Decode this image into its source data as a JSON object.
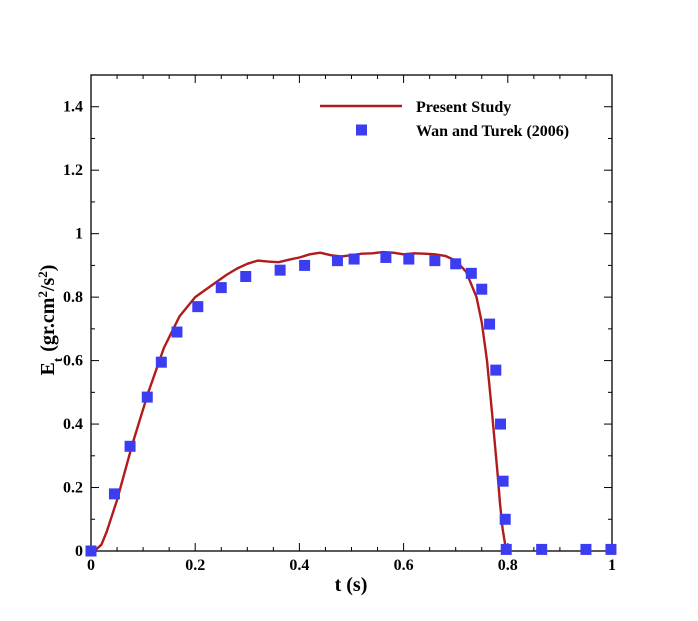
{
  "chart_data": {
    "type": "line",
    "xlabel": "t (s)",
    "ylabel": {
      "main": "E",
      "sub": "t",
      "open": "(gr.cm",
      "sup1": "2",
      "mid": "/s",
      "sup2": "2",
      "close": ")"
    },
    "xlim": [
      0,
      1
    ],
    "ylim": [
      0,
      1.5
    ],
    "xticks": [
      0,
      0.2,
      0.4,
      0.6,
      0.8,
      1
    ],
    "xtick_labels": [
      "0",
      "0.2",
      "0.4",
      "0.6",
      "0.8",
      "1"
    ],
    "yticks": [
      0,
      0.2,
      0.4,
      0.6,
      0.8,
      1,
      1.2,
      1.4
    ],
    "ytick_labels": [
      "0",
      "0.2",
      "0.4",
      "0.6",
      "0.8",
      "1",
      "1.2",
      "1.4"
    ],
    "grid": false,
    "legend_position": "top-right",
    "series": [
      {
        "name": "Present Study",
        "kind": "line",
        "color": "#b01c1c",
        "x": [
          0,
          0.01,
          0.02,
          0.03,
          0.05,
          0.08,
          0.11,
          0.14,
          0.17,
          0.2,
          0.23,
          0.26,
          0.28,
          0.3,
          0.32,
          0.34,
          0.36,
          0.38,
          0.4,
          0.42,
          0.44,
          0.46,
          0.48,
          0.5,
          0.52,
          0.54,
          0.56,
          0.58,
          0.6,
          0.62,
          0.64,
          0.66,
          0.68,
          0.7,
          0.72,
          0.74,
          0.75,
          0.76,
          0.77,
          0.78,
          0.785,
          0.79,
          0.795,
          0.8
        ],
        "y": [
          0,
          0.005,
          0.02,
          0.06,
          0.16,
          0.34,
          0.5,
          0.64,
          0.74,
          0.8,
          0.835,
          0.87,
          0.89,
          0.905,
          0.915,
          0.912,
          0.91,
          0.918,
          0.925,
          0.935,
          0.94,
          0.932,
          0.928,
          0.932,
          0.937,
          0.938,
          0.942,
          0.94,
          0.935,
          0.938,
          0.937,
          0.935,
          0.93,
          0.915,
          0.88,
          0.8,
          0.72,
          0.6,
          0.43,
          0.25,
          0.15,
          0.07,
          0.02,
          0
        ]
      },
      {
        "name": "Wan and Turek (2006)",
        "kind": "scatter",
        "color": "#3c3cf0",
        "x": [
          0,
          0.045,
          0.075,
          0.108,
          0.135,
          0.165,
          0.205,
          0.25,
          0.297,
          0.363,
          0.41,
          0.473,
          0.505,
          0.566,
          0.61,
          0.66,
          0.7,
          0.73,
          0.75,
          0.765,
          0.777,
          0.786,
          0.791,
          0.795,
          0.797,
          0.865,
          0.95,
          0.998
        ],
        "y": [
          0,
          0.18,
          0.33,
          0.485,
          0.595,
          0.69,
          0.77,
          0.83,
          0.865,
          0.885,
          0.9,
          0.915,
          0.92,
          0.925,
          0.92,
          0.915,
          0.905,
          0.875,
          0.825,
          0.715,
          0.57,
          0.4,
          0.22,
          0.1,
          0.005,
          0.005,
          0.005,
          0.005
        ]
      }
    ]
  }
}
